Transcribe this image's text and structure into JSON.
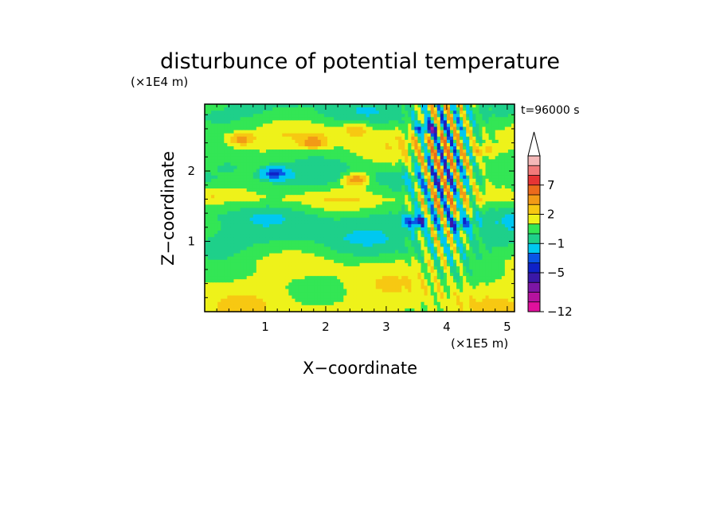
{
  "chart_data": {
    "type": "heatmap",
    "title": "disturbunce of potential temperature",
    "xlabel": "X−coordinate",
    "ylabel": "Z−coordinate",
    "x_unit": "(×1E5 m)",
    "y_unit": "(×1E4 m)",
    "time_label": "t=96000 s",
    "xlim": [
      0,
      5.12
    ],
    "ylim": [
      0,
      2.95
    ],
    "x_ticks": [
      1,
      2,
      3,
      4,
      5
    ],
    "y_ticks": [
      1,
      2
    ],
    "colorbar": {
      "levels": [
        -12,
        -11,
        -9,
        -7,
        -5,
        -4,
        -3,
        -1,
        0,
        1,
        2,
        3,
        5,
        7,
        9,
        10
      ],
      "colors": [
        "#e0109c",
        "#b5129e",
        "#7d16a6",
        "#3a18a8",
        "#0f22c8",
        "#0a55e6",
        "#00c8f0",
        "#1ed08a",
        "#33e655",
        "#eef21a",
        "#f7c812",
        "#f29a16",
        "#ec6a1c",
        "#e63434",
        "#f27a7a",
        "#f4b8b8"
      ],
      "tick_labels": [
        "−12",
        "−5",
        "−1",
        "2",
        "7"
      ],
      "extend": "max"
    },
    "field_profile_by_height": [
      {
        "z": 0.1,
        "base": 1.5
      },
      {
        "z": 0.4,
        "base": 1.3
      },
      {
        "z": 0.7,
        "base": 1.0
      },
      {
        "z": 0.85,
        "base": 0.2
      },
      {
        "z": 1.05,
        "base": -0.5
      },
      {
        "z": 1.35,
        "base": -0.3
      },
      {
        "z": 1.6,
        "base": 1.4
      },
      {
        "z": 1.9,
        "base": -0.5
      },
      {
        "z": 2.2,
        "base": 0.8
      },
      {
        "z": 2.5,
        "base": 1.5
      },
      {
        "z": 2.8,
        "base": -0.2
      }
    ],
    "features": [
      {
        "x": 1.15,
        "z": 1.97,
        "value": -5
      },
      {
        "x": 3.7,
        "z": 2.6,
        "value": -5
      },
      {
        "x": 3.5,
        "z": 1.28,
        "value": -5
      },
      {
        "x": 4.2,
        "z": 1.25,
        "value": -4
      },
      {
        "x": 2.5,
        "z": 1.88,
        "value": 4
      },
      {
        "x": 0.6,
        "z": 2.45,
        "value": 4
      },
      {
        "x": 1.8,
        "z": 2.4,
        "value": 4
      },
      {
        "x": 2.5,
        "z": 2.6,
        "value": 3
      },
      {
        "x": 4.6,
        "z": 2.3,
        "value": 3
      },
      {
        "x": 0.4,
        "z": 2.05,
        "value": -1
      },
      {
        "x": 0.1,
        "z": 1.68,
        "value": 2
      }
    ]
  }
}
